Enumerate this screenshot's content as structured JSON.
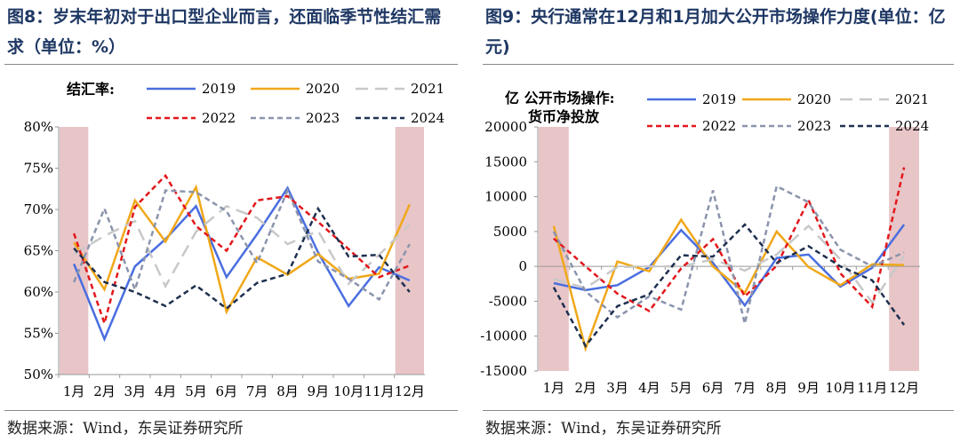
{
  "left": {
    "title": "图8：岁末年初对于出口型企业而言，还面临季节性结汇需求（单位：%）",
    "source": "数据来源：Wind，东吴证券研究所"
  },
  "right": {
    "title": "图9：央行通常在12月和1月加大公开市场操作力度(单位：亿元)",
    "source": "数据来源：Wind，东吴证券研究所"
  },
  "colors": {
    "2019": "#4a6ee0",
    "2020": "#f0a81a",
    "2021": "#c8c8c8",
    "2022": "#e3171b",
    "2023": "#8b94ad",
    "2024": "#1f3050",
    "highlight": "#e8c5c7"
  },
  "chart_data": [
    {
      "type": "line",
      "ylabel": "结汇率:",
      "ylim": [
        50,
        80
      ],
      "yticks": [
        "50%",
        "55%",
        "60%",
        "65%",
        "70%",
        "75%",
        "80%"
      ],
      "categories": [
        "1月",
        "2月",
        "3月",
        "4月",
        "5月",
        "6月",
        "7月",
        "8月",
        "9月",
        "10月",
        "11月",
        "12月"
      ],
      "highlight": [
        "1月",
        "12月"
      ],
      "legend": "top",
      "series": [
        {
          "name": "2019",
          "dash": "solid",
          "values": [
            63.4,
            54.3,
            63.1,
            66.4,
            70.4,
            61.8,
            67,
            72.6,
            64.8,
            58.3,
            63,
            61.4
          ]
        },
        {
          "name": "2020",
          "dash": "solid",
          "values": [
            66,
            60.3,
            71.1,
            66.1,
            72.7,
            57.6,
            64.2,
            62.1,
            64.6,
            61.6,
            62.2,
            70.6
          ]
        },
        {
          "name": "2021",
          "dash": "long",
          "values": [
            64.6,
            66.8,
            68.6,
            60.7,
            67.3,
            70.4,
            69,
            65.8,
            67.4,
            61,
            64.5,
            68.2
          ]
        },
        {
          "name": "2022",
          "dash": "short",
          "values": [
            67.1,
            56.2,
            70.3,
            74.1,
            68,
            65,
            71.1,
            71.6,
            68.5,
            65.2,
            61.8,
            63.2
          ]
        },
        {
          "name": "2023",
          "dash": "short",
          "values": [
            61.2,
            70.1,
            60.3,
            72.3,
            72.1,
            69.8,
            63.5,
            72.3,
            63.7,
            61.6,
            59.1,
            65.8
          ]
        },
        {
          "name": "2024",
          "dash": "short",
          "values": [
            65.3,
            61.2,
            60,
            58.3,
            60.8,
            58,
            61.1,
            62.2,
            70.1,
            64.3,
            64.5,
            60
          ]
        }
      ]
    },
    {
      "type": "line",
      "ylabel": "亿 公开市场操作:货币净投放",
      "ylim": [
        -15000,
        20000
      ],
      "yticks": [
        "-15000",
        "-10000",
        "-5000",
        "0",
        "5000",
        "10000",
        "15000",
        "20000"
      ],
      "categories": [
        "1月",
        "2月",
        "3月",
        "4月",
        "5月",
        "6月",
        "7月",
        "8月",
        "9月",
        "10月",
        "11月",
        "12月"
      ],
      "highlight": [
        "1月",
        "12月"
      ],
      "legend": "top",
      "series": [
        {
          "name": "2019",
          "dash": "solid",
          "values": [
            -2400,
            -3400,
            -2700,
            -100,
            5200,
            500,
            -5600,
            1200,
            1700,
            -2900,
            -200,
            6000
          ]
        },
        {
          "name": "2020",
          "dash": "solid",
          "values": [
            5800,
            -11800,
            700,
            -700,
            6700,
            0,
            -3800,
            5000,
            -100,
            -2700,
            300,
            200
          ]
        },
        {
          "name": "2021",
          "dash": "long",
          "values": [
            -1800,
            -3100,
            -100,
            0,
            0,
            1000,
            -600,
            1700,
            5800,
            1000,
            -5200,
            1500
          ]
        },
        {
          "name": "2022",
          "dash": "short",
          "values": [
            4000,
            0,
            -3900,
            -6400,
            -300,
            3900,
            -4300,
            100,
            9500,
            -1000,
            -5800,
            14200
          ]
        },
        {
          "name": "2023",
          "dash": "short",
          "values": [
            5000,
            -3600,
            -7300,
            -4300,
            -6200,
            10900,
            -8200,
            11500,
            9200,
            2400,
            0,
            2000
          ]
        },
        {
          "name": "2024",
          "dash": "short",
          "values": [
            -3000,
            -11400,
            -5700,
            -4000,
            1600,
            1400,
            6000,
            500,
            2900,
            0,
            -2000,
            -8400
          ]
        }
      ]
    }
  ]
}
